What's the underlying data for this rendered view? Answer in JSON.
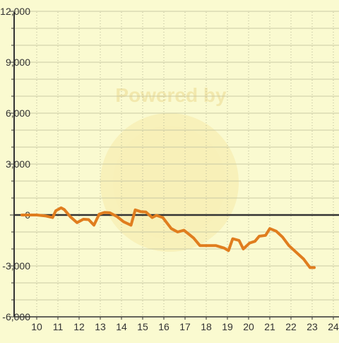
{
  "chart_data": {
    "type": "line",
    "title": "",
    "xlabel": "",
    "ylabel": "",
    "xlim": [
      9.5,
      24.5
    ],
    "ylim": [
      -6000,
      12000
    ],
    "x_ticks": [
      10,
      11,
      12,
      13,
      14,
      15,
      16,
      17,
      18,
      19,
      20,
      21,
      22,
      23,
      24
    ],
    "y_ticks": [
      -6000,
      -3000,
      0,
      3000,
      6000,
      9000,
      12000
    ],
    "x_tick_labels": [
      "10",
      "11",
      "12",
      "13",
      "14",
      "15",
      "16",
      "17",
      "18",
      "19",
      "20",
      "21",
      "22",
      "23",
      "24"
    ],
    "y_tick_labels": [
      "-6,000",
      "-3,000",
      "0",
      "3,000",
      "6,000",
      "9,000",
      "12,000"
    ],
    "grid": {
      "horizontal": true,
      "vertical": "dotted"
    },
    "series": [
      {
        "color": "#e07d1e",
        "points": [
          [
            9.3,
            0
          ],
          [
            10.0,
            0
          ],
          [
            10.4,
            -50
          ],
          [
            10.75,
            -150
          ],
          [
            10.9,
            250
          ],
          [
            11.15,
            420
          ],
          [
            11.3,
            320
          ],
          [
            11.6,
            -120
          ],
          [
            11.9,
            -450
          ],
          [
            12.2,
            -250
          ],
          [
            12.45,
            -270
          ],
          [
            12.7,
            -600
          ],
          [
            12.95,
            50
          ],
          [
            13.2,
            150
          ],
          [
            13.45,
            130
          ],
          [
            13.8,
            -100
          ],
          [
            14.1,
            -400
          ],
          [
            14.45,
            -600
          ],
          [
            14.65,
            300
          ],
          [
            14.9,
            200
          ],
          [
            15.15,
            180
          ],
          [
            15.45,
            -150
          ],
          [
            15.65,
            -20
          ],
          [
            15.95,
            -150
          ],
          [
            16.35,
            -800
          ],
          [
            16.65,
            -1000
          ],
          [
            16.95,
            -900
          ],
          [
            17.4,
            -1350
          ],
          [
            17.7,
            -1800
          ],
          [
            18.1,
            -1800
          ],
          [
            18.45,
            -1800
          ],
          [
            18.85,
            -1950
          ],
          [
            19.05,
            -2100
          ],
          [
            19.25,
            -1400
          ],
          [
            19.55,
            -1500
          ],
          [
            19.75,
            -2000
          ],
          [
            20.05,
            -1650
          ],
          [
            20.3,
            -1550
          ],
          [
            20.5,
            -1250
          ],
          [
            20.8,
            -1200
          ],
          [
            21.0,
            -800
          ],
          [
            21.3,
            -950
          ],
          [
            21.6,
            -1300
          ],
          [
            21.9,
            -1800
          ],
          [
            22.25,
            -2200
          ],
          [
            22.6,
            -2600
          ],
          [
            22.9,
            -3100
          ],
          [
            23.1,
            -3100
          ]
        ]
      }
    ],
    "watermark": "Powered by"
  }
}
